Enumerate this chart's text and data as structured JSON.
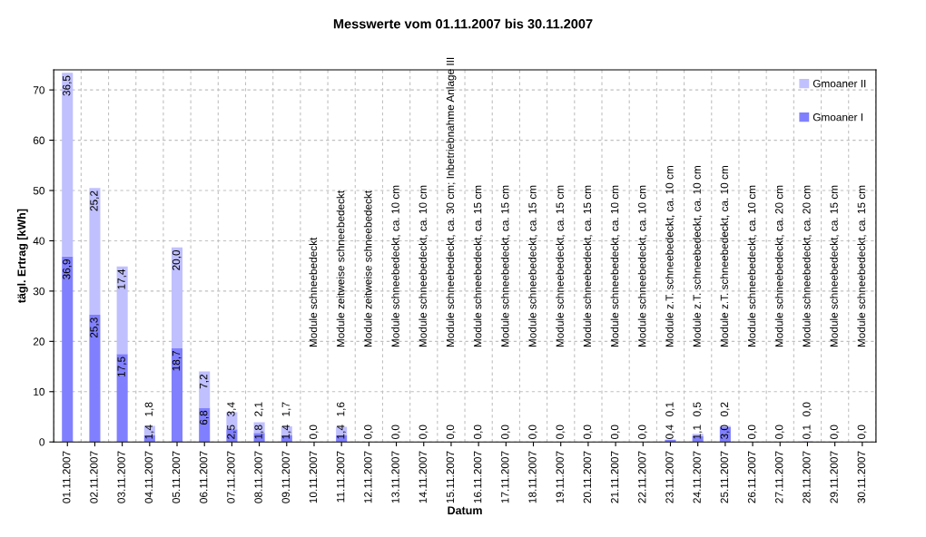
{
  "chart_data": {
    "type": "bar",
    "title": "Messwerte vom 01.11.2007 bis 30.11.2007",
    "xlabel": "Datum",
    "ylabel": "tägl. Ertrag [kWh]",
    "categories": [
      "01.11.2007",
      "02.11.2007",
      "03.11.2007",
      "04.11.2007",
      "05.11.2007",
      "06.11.2007",
      "07.11.2007",
      "08.11.2007",
      "09.11.2007",
      "10.11.2007",
      "11.11.2007",
      "12.11.2007",
      "13.11.2007",
      "14.11.2007",
      "15.11.2007",
      "16.11.2007",
      "17.11.2007",
      "18.11.2007",
      "19.11.2007",
      "20.11.2007",
      "21.11.2007",
      "22.11.2007",
      "23.11.2007",
      "24.11.2007",
      "25.11.2007",
      "26.11.2007",
      "27.11.2007",
      "28.11.2007",
      "29.11.2007",
      "30.11.2007"
    ],
    "stacked": true,
    "series": [
      {
        "name": "Gmoaner I",
        "color": "#8080ff",
        "values": [
          36.9,
          25.3,
          17.5,
          1.4,
          18.7,
          6.8,
          2.5,
          1.8,
          1.4,
          0.0,
          1.4,
          0.0,
          0.0,
          0.0,
          0.0,
          0.0,
          0.0,
          0.0,
          0.0,
          0.0,
          0.0,
          0.0,
          0.4,
          1.1,
          3.0,
          0.0,
          0.0,
          0.1,
          0.0,
          0.0
        ],
        "value_labels": [
          "36,9",
          "25,3",
          "17,5",
          "1,4",
          "18,7",
          "6,8",
          "2,5",
          "1,8",
          "1,4",
          "0,0",
          "1,4",
          "0,0",
          "0,0",
          "0,0",
          "0,0",
          "0,0",
          "0,0",
          "0,0",
          "0,0",
          "0,0",
          "0,0",
          "0,0",
          "0,4",
          "1,1",
          "3,0",
          "0,0",
          "0,0",
          "0,1",
          "0,0",
          "0,0"
        ]
      },
      {
        "name": "Gmoaner II",
        "color": "#c0c0ff",
        "values": [
          36.5,
          25.2,
          17.4,
          1.8,
          20.0,
          7.2,
          3.4,
          2.1,
          1.7,
          null,
          1.6,
          null,
          null,
          null,
          null,
          null,
          null,
          null,
          null,
          null,
          null,
          null,
          0.1,
          0.5,
          0.2,
          null,
          null,
          0.0,
          null,
          null
        ],
        "value_labels": [
          "36,5",
          "25,2",
          "17,4",
          "1,8",
          "20,0",
          "7,2",
          "3,4",
          "2,1",
          "1,7",
          null,
          "1,6",
          null,
          null,
          null,
          null,
          null,
          null,
          null,
          null,
          null,
          null,
          null,
          "0,1",
          "0,5",
          "0,2",
          null,
          null,
          "0,0",
          null,
          null
        ]
      }
    ],
    "ylim": [
      0,
      74
    ],
    "yticks": [
      0,
      10,
      20,
      30,
      40,
      50,
      60,
      70
    ],
    "grid": true,
    "legend": "top right",
    "annotations": [
      "Module schneebedeckt",
      "Module zeitweise schneebedeckt",
      "Module zeitweise schneebedeckt",
      "Module schneebedeckt, ca. 10 cm",
      "Module schneebedeckt, ca. 10 cm",
      "Module schneebedeckt, ca. 30 cm; Inbetriebnahme Anlage III",
      "Module schneebedeckt, ca. 15 cm",
      "Module schneebedeckt, ca. 15 cm",
      "Module schneebedeckt, ca. 15 cm",
      "Module schneebedeckt, ca. 15 cm",
      "Module schneebedeckt, ca. 15 cm",
      "Module schneebedeckt, ca. 10 cm",
      "Module schneebedeckt, ca. 10 cm",
      "Module z.T. schneebedeckt, ca. 10 cm",
      "Module z.T. schneebedeckt, ca. 10 cm",
      "Module z.T. schneebedeckt, ca. 10 cm",
      "Module schneebedeckt, ca. 10 cm",
      "Module schneebedeckt, ca. 20 cm",
      "Module schneebedeckt, ca. 20 cm",
      "Module schneebedeckt, ca. 15 cm",
      "Module schneebedeckt, ca. 15 cm"
    ]
  }
}
